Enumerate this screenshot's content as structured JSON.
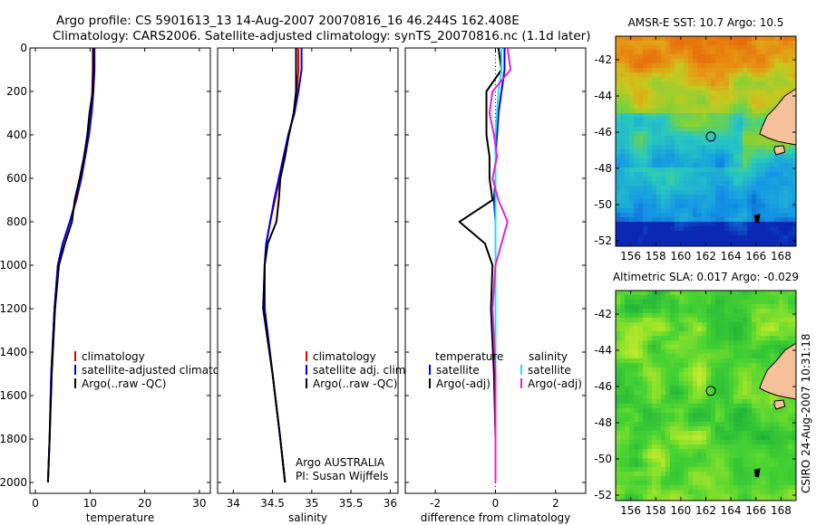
{
  "header": {
    "title_line1": "Argo profile: CS 5901613_13 14-Aug-2007 20070816_16 46.244S 162.408E",
    "title_line2": "Climatology: CARS2006. Satellite-adjusted climatology: synTS_20070816.nc (1.1d later)"
  },
  "colors": {
    "climatology": "#e00000",
    "satellite": "#0000e0",
    "argo": "#000000",
    "sat_sal": "#20e0e0",
    "argo_sal": "#e020e0",
    "land": "#f5c19a"
  },
  "chart_data": [
    {
      "type": "line",
      "id": "temperature",
      "xlabel": "temperature",
      "ylabel": "",
      "xlim": [
        -1,
        32
      ],
      "ylim": [
        2050,
        0
      ],
      "xticks": [
        0,
        10,
        20,
        30
      ],
      "yticks": [
        0,
        200,
        400,
        600,
        800,
        1000,
        1200,
        1400,
        1600,
        1800,
        2000
      ],
      "legend": [
        "climatology",
        "satellite-adjusted climatology",
        "Argo(..raw -QC)"
      ],
      "legend_position": "lower-right",
      "series": [
        {
          "name": "climatology",
          "color": "#e00000",
          "x": [
            10.5,
            10.5,
            10.4,
            10.2,
            9.8,
            9.1,
            8.4,
            7.5,
            6.3,
            5.0,
            4.1,
            3.5,
            2.9,
            2.6,
            2.3
          ],
          "y": [
            0,
            100,
            200,
            300,
            400,
            500,
            600,
            700,
            800,
            900,
            1000,
            1200,
            1500,
            1800,
            2000
          ]
        },
        {
          "name": "satellite-adjusted climatology",
          "color": "#0000e0",
          "x": [
            10.8,
            10.8,
            10.6,
            10.3,
            9.8,
            9.1,
            8.4,
            7.4,
            6.3,
            5.0,
            4.1,
            3.5,
            2.9,
            2.6,
            2.3
          ],
          "y": [
            0,
            100,
            200,
            300,
            400,
            500,
            600,
            700,
            800,
            900,
            1000,
            1200,
            1500,
            1800,
            2000
          ]
        },
        {
          "name": "Argo(..raw -QC)",
          "color": "#000000",
          "x": [
            10.6,
            10.6,
            10.5,
            9.9,
            9.5,
            8.9,
            8.1,
            7.2,
            6.7,
            5.4,
            4.3,
            3.6,
            3.0,
            2.6,
            2.3
          ],
          "y": [
            0,
            100,
            200,
            300,
            400,
            500,
            600,
            700,
            800,
            900,
            1000,
            1200,
            1500,
            1800,
            2000
          ]
        }
      ]
    },
    {
      "type": "line",
      "id": "salinity",
      "xlabel": "salinity",
      "ylabel": "",
      "xlim": [
        33.8,
        36.1
      ],
      "ylim": [
        2050,
        0
      ],
      "xticks": [
        34,
        34.5,
        35,
        35.5,
        36
      ],
      "yticks": [],
      "legend": [
        "climatology",
        "satellite adj. clim.",
        "Argo(..raw -QC)"
      ],
      "legend_position": "lower-right",
      "annotation": [
        "Argo AUSTRALIA",
        "PI: Susan Wijffels"
      ],
      "series": [
        {
          "name": "climatology",
          "color": "#e00000",
          "x": [
            34.83,
            34.83,
            34.81,
            34.77,
            34.71,
            34.64,
            34.59,
            34.53,
            34.47,
            34.42,
            34.4,
            34.4,
            34.5,
            34.6,
            34.66
          ],
          "y": [
            0,
            100,
            200,
            300,
            400,
            500,
            600,
            700,
            800,
            900,
            1000,
            1200,
            1500,
            1800,
            2000
          ]
        },
        {
          "name": "satellite adj. clim.",
          "color": "#0000e0",
          "x": [
            34.87,
            34.87,
            34.83,
            34.78,
            34.7,
            34.64,
            34.58,
            34.52,
            34.47,
            34.42,
            34.4,
            34.4,
            34.5,
            34.6,
            34.66
          ],
          "y": [
            0,
            100,
            200,
            300,
            400,
            500,
            600,
            700,
            800,
            900,
            1000,
            1200,
            1500,
            1800,
            2000
          ]
        },
        {
          "name": "Argo(..raw -QC)",
          "color": "#000000",
          "x": [
            34.8,
            34.8,
            34.8,
            34.77,
            34.71,
            34.66,
            34.6,
            34.58,
            34.55,
            34.44,
            34.4,
            34.38,
            34.5,
            34.6,
            34.66
          ],
          "y": [
            0,
            100,
            200,
            300,
            400,
            500,
            600,
            700,
            800,
            900,
            1000,
            1200,
            1500,
            1800,
            2000
          ]
        }
      ]
    },
    {
      "type": "line",
      "id": "difference",
      "xlabel": "difference from climatology",
      "ylabel": "",
      "xlim": [
        -3,
        3
      ],
      "ylim": [
        2050,
        0
      ],
      "xticks": [
        -2,
        0,
        2
      ],
      "yticks": [],
      "legend_left_title": "temperature",
      "legend_right_title": "salinity",
      "legend_left": [
        "satellite",
        "Argo(-adj)"
      ],
      "legend_right": [
        "satellite",
        "Argo(-adj)"
      ],
      "series": [
        {
          "name": "temperature satellite",
          "color": "#0000e0",
          "x": [
            0.3,
            0.3,
            0.2,
            0.1,
            0.05,
            0.0,
            0.0,
            -0.05,
            0.0,
            0.0,
            0.0,
            0.0,
            0.0,
            0.0,
            0.0
          ],
          "y": [
            0,
            100,
            200,
            300,
            400,
            500,
            600,
            700,
            800,
            900,
            1000,
            1200,
            1500,
            1800,
            2000
          ]
        },
        {
          "name": "temperature Argo(-adj)",
          "color": "#000000",
          "x": [
            0.1,
            0.2,
            -0.3,
            -0.3,
            -0.3,
            -0.2,
            -0.2,
            -0.1,
            -1.2,
            -0.35,
            -0.1,
            -0.15,
            -0.05,
            0.0,
            0.0
          ],
          "y": [
            0,
            100,
            200,
            300,
            400,
            500,
            600,
            700,
            800,
            900,
            1000,
            1200,
            1500,
            1800,
            2000
          ]
        },
        {
          "name": "salinity satellite",
          "color": "#20e0e0",
          "x": [
            0.2,
            0.2,
            0.1,
            0.05,
            0.0,
            0.0,
            0.0,
            0.0,
            0.0,
            0.0,
            0.0,
            0.0,
            0.0,
            0.0,
            0.0
          ],
          "y": [
            0,
            100,
            200,
            300,
            400,
            500,
            600,
            700,
            800,
            900,
            1000,
            1200,
            1500,
            1800,
            2000
          ]
        },
        {
          "name": "salinity Argo(-adj)",
          "color": "#e020e0",
          "x": [
            0.4,
            0.5,
            -0.1,
            -0.2,
            -0.05,
            0.05,
            -0.1,
            0.1,
            0.4,
            0.2,
            0.0,
            -0.1,
            0.0,
            0.0,
            0.0
          ],
          "y": [
            0,
            100,
            200,
            300,
            400,
            500,
            600,
            700,
            800,
            900,
            1000,
            1200,
            1500,
            1800,
            2000
          ]
        }
      ]
    },
    {
      "type": "heatmap",
      "id": "sst-map",
      "title": "AMSR-E SST: 10.7 Argo: 10.5",
      "xlim": [
        154.8,
        169.2
      ],
      "ylim": [
        -52.3,
        -40.7
      ],
      "xticks": [
        156,
        158,
        160,
        162,
        164,
        166,
        168
      ],
      "yticks": [
        -42,
        -44,
        -46,
        -48,
        -50,
        -52
      ],
      "marker": {
        "lon": 162.4,
        "lat": -46.24
      }
    },
    {
      "type": "heatmap",
      "id": "sla-map",
      "title": "Altimetric SLA: 0.017 Argo: -0.029",
      "xlim": [
        154.8,
        169.2
      ],
      "ylim": [
        -52.3,
        -40.7
      ],
      "xticks": [
        156,
        158,
        160,
        162,
        164,
        166,
        168
      ],
      "yticks": [
        -42,
        -44,
        -46,
        -48,
        -50,
        -52
      ],
      "marker": {
        "lon": 162.4,
        "lat": -46.24
      }
    }
  ],
  "footer": {
    "credit": "CSIRO 24-Aug-2007 10:31:18"
  }
}
